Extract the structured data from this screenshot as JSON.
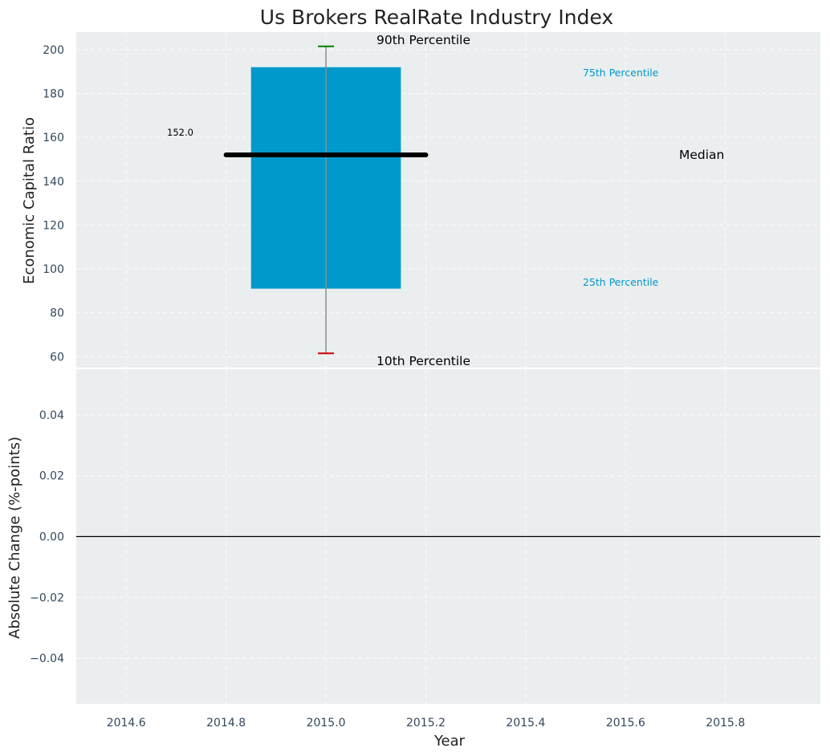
{
  "chart_data": {
    "title": "Us Brokers RealRate Industry Index",
    "xlabel": "Year",
    "xlim": [
      2014.5,
      2015.99
    ],
    "x_ticks": [
      2014.6,
      2014.8,
      2015.0,
      2015.2,
      2015.4,
      2015.6,
      2015.8
    ],
    "x_tick_labels": [
      "2014.6",
      "2014.8",
      "2015.0",
      "2015.2",
      "2015.4",
      "2015.6",
      "2015.8"
    ],
    "top_panel": {
      "type": "box",
      "ylabel": "Economic Capital Ratio",
      "ylim": [
        55,
        208
      ],
      "y_ticks": [
        60,
        80,
        100,
        120,
        140,
        160,
        180,
        200
      ],
      "y_tick_labels": [
        "60",
        "80",
        "100",
        "120",
        "140",
        "160",
        "180",
        "200"
      ],
      "x": 2015.0,
      "box_x_range": [
        2014.85,
        2015.15
      ],
      "median_x_range": [
        2014.8,
        2015.2
      ],
      "p10": 61.5,
      "p25": 91,
      "median": 152,
      "p75": 192,
      "p90": 201.5,
      "box_color": "#0099cc",
      "median_color": "#000000",
      "p90_cap_color": "#008000",
      "p10_cap_color": "#cc0000",
      "whisker_color": "#8c8c8c",
      "annotations": {
        "p90_label": "90th Percentile",
        "p75_label": "75th Percentile",
        "median_label": "Median",
        "p25_label": "25th Percentile",
        "p10_label": "10th Percentile",
        "median_value_label": "152.0"
      },
      "percentile_label_color": "#0099cc"
    },
    "bottom_panel": {
      "type": "line",
      "ylabel": "Absolute Change (%-points)",
      "ylim": [
        -0.055,
        0.055
      ],
      "y_ticks": [
        -0.04,
        -0.02,
        0.0,
        0.02,
        0.04
      ],
      "y_tick_labels": [
        "−0.04",
        "−0.02",
        "0.00",
        "0.02",
        "0.04"
      ],
      "zero_line": 0.0,
      "series": []
    },
    "background_color": "#eaeeef",
    "grid": true
  }
}
